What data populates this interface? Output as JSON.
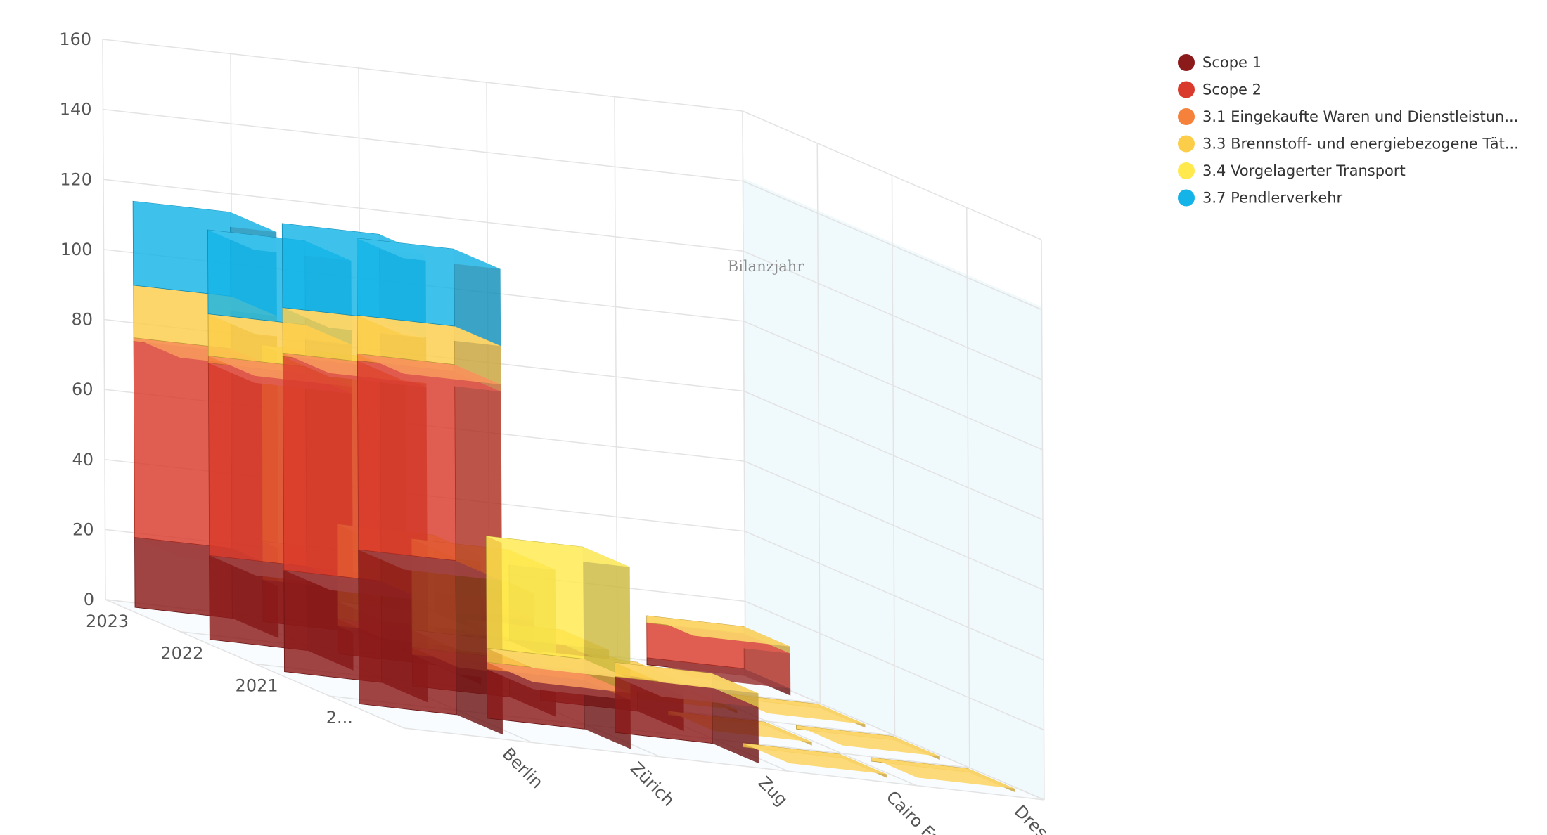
{
  "chart_data": {
    "type": "bar",
    "variant": "3d-stacked",
    "title": "",
    "ylim": [
      0,
      160
    ],
    "y_ticks": [
      0,
      20,
      40,
      60,
      80,
      100,
      120,
      140,
      160
    ],
    "x_categories": [
      "Berlin",
      "Zürich",
      "Zug",
      "Cairo Facility",
      "Dresden"
    ],
    "depth_categories": [
      "2...",
      "2021",
      "2022",
      "2023"
    ],
    "depth_axis_title": "Bilanzjahr",
    "grid": true,
    "legend_position": "top-right",
    "series": [
      {
        "name": "Scope 1",
        "color": "#8b1a1a",
        "values": [
          [
            44,
            29,
            24,
            20
          ],
          [
            14,
            9,
            8,
            12
          ],
          [
            16,
            10,
            10,
            12
          ],
          [
            0,
            0,
            0,
            0
          ],
          [
            0,
            0,
            0,
            2
          ]
        ]
      },
      {
        "name": "Scope 2",
        "color": "#d93a2b",
        "values": [
          [
            54,
            61,
            55,
            56
          ],
          [
            0,
            0,
            0,
            0
          ],
          [
            0,
            0,
            0,
            1
          ],
          [
            0,
            0,
            0,
            0
          ],
          [
            0,
            0,
            0,
            10
          ]
        ]
      },
      {
        "name": "3.1 Eingekaufte Waren und Dienstleistun...",
        "color": "#f5813a",
        "values": [
          [
            2,
            1,
            2,
            1
          ],
          [
            2,
            2,
            2,
            5
          ],
          [
            0,
            0,
            0,
            1
          ],
          [
            0,
            0,
            0,
            0
          ],
          [
            0,
            0,
            0,
            0
          ]
        ]
      },
      {
        "name": "3.3 Brennstoff- und energiebezogene Tät...",
        "color": "#fbcd49",
        "values": [
          [
            11,
            13,
            12,
            15
          ],
          [
            4,
            5,
            5,
            6
          ],
          [
            4,
            4,
            4,
            7
          ],
          [
            1,
            1,
            1,
            1
          ],
          [
            1,
            1,
            1,
            2
          ]
        ]
      },
      {
        "name": "3.4 Vorgelagerter Transport",
        "color": "#ffe94d",
        "values": [
          [
            0,
            0,
            0,
            0
          ],
          [
            32,
            26,
            22,
            56
          ],
          [
            0,
            0,
            0,
            0
          ],
          [
            0,
            0,
            0,
            0
          ],
          [
            0,
            0,
            0,
            0
          ]
        ]
      },
      {
        "name": "3.7 Pendlerverkehr",
        "color": "#14b4e8",
        "values": [
          [
            22,
            24,
            24,
            24
          ],
          [
            0,
            0,
            0,
            0
          ],
          [
            0,
            0,
            0,
            0
          ],
          [
            0,
            0,
            0,
            0
          ],
          [
            0,
            0,
            0,
            0
          ]
        ]
      }
    ]
  }
}
